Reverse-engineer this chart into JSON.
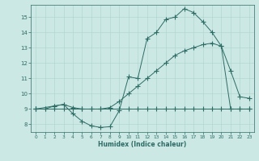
{
  "xlabel": "Humidex (Indice chaleur)",
  "bg_color": "#cce8e4",
  "line_color": "#2d6b65",
  "grid_color": "#aad4cc",
  "xlim": [
    -0.5,
    23.5
  ],
  "ylim": [
    7.5,
    15.8
  ],
  "yticks": [
    8,
    9,
    10,
    11,
    12,
    13,
    14,
    15
  ],
  "xticks": [
    0,
    1,
    2,
    3,
    4,
    5,
    6,
    7,
    8,
    9,
    10,
    11,
    12,
    13,
    14,
    15,
    16,
    17,
    18,
    19,
    20,
    21,
    22,
    23
  ],
  "line1_x": [
    0,
    1,
    2,
    3,
    4,
    5,
    6,
    7,
    8,
    9,
    10,
    11,
    12,
    13,
    14,
    15,
    16,
    17,
    18,
    19,
    20,
    21,
    22,
    23
  ],
  "line1_y": [
    9,
    9,
    9,
    9,
    9,
    9,
    9,
    9,
    9,
    9,
    9,
    9,
    9,
    9,
    9,
    9,
    9,
    9,
    9,
    9,
    9,
    9,
    9,
    9
  ],
  "line2_x": [
    0,
    2,
    3,
    4,
    5,
    6,
    7,
    8,
    9,
    10,
    11,
    12,
    13,
    14,
    15,
    16,
    17,
    18,
    19,
    20,
    21,
    22,
    23
  ],
  "line2_y": [
    9,
    9.2,
    9.3,
    9.1,
    9.0,
    9.0,
    9.0,
    9.1,
    9.5,
    10.0,
    10.5,
    11.0,
    11.5,
    12.0,
    12.5,
    12.8,
    13.0,
    13.2,
    13.3,
    13.1,
    11.5,
    9.8,
    9.7
  ],
  "line3_x": [
    0,
    1,
    2,
    3,
    4,
    5,
    6,
    7,
    8,
    9,
    10,
    11,
    12,
    13,
    14,
    15,
    16,
    17,
    18,
    19,
    20,
    21,
    22,
    23
  ],
  "line3_y": [
    9,
    9,
    9.2,
    9.3,
    8.7,
    8.2,
    7.9,
    7.8,
    7.85,
    8.9,
    11.1,
    11.0,
    13.6,
    14.0,
    14.85,
    15.0,
    15.55,
    15.3,
    14.7,
    14.0,
    13.1,
    9.0,
    9.0,
    9.0
  ]
}
